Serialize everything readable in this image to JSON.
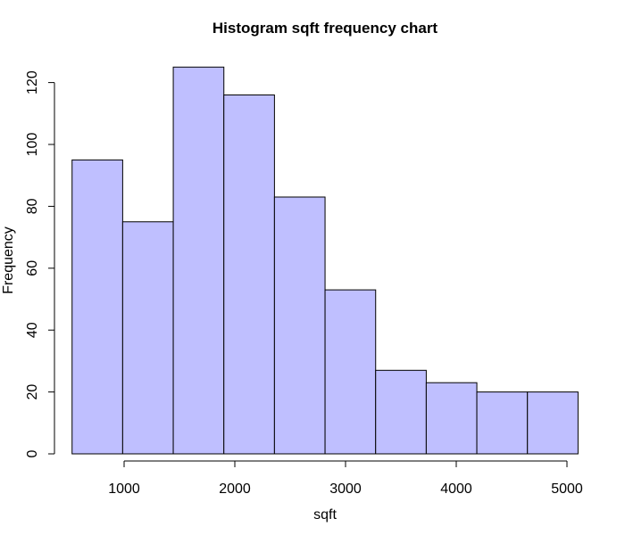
{
  "chart_data": {
    "type": "bar",
    "title": "Histogram sqft frequency chart",
    "xlabel": "sqft",
    "ylabel": "Frequency",
    "bins": [
      {
        "start": 530,
        "end": 987,
        "count": 95
      },
      {
        "start": 987,
        "end": 1444,
        "count": 75
      },
      {
        "start": 1444,
        "end": 1901,
        "count": 125
      },
      {
        "start": 1901,
        "end": 2358,
        "count": 116
      },
      {
        "start": 2358,
        "end": 2815,
        "count": 83
      },
      {
        "start": 2815,
        "end": 3272,
        "count": 53
      },
      {
        "start": 3272,
        "end": 3729,
        "count": 27
      },
      {
        "start": 3729,
        "end": 4186,
        "count": 23
      },
      {
        "start": 4186,
        "end": 4643,
        "count": 20
      },
      {
        "start": 4643,
        "end": 5100,
        "count": 20
      }
    ],
    "x_ticks": [
      1000,
      2000,
      3000,
      4000,
      5000
    ],
    "y_ticks": [
      0,
      20,
      40,
      60,
      80,
      100,
      120
    ],
    "xlim": [
      530,
      5100
    ],
    "ylim": [
      0,
      125
    ],
    "grid": false,
    "colors": {
      "bar_fill": "#bfbfff",
      "bar_stroke": "#000000"
    }
  }
}
